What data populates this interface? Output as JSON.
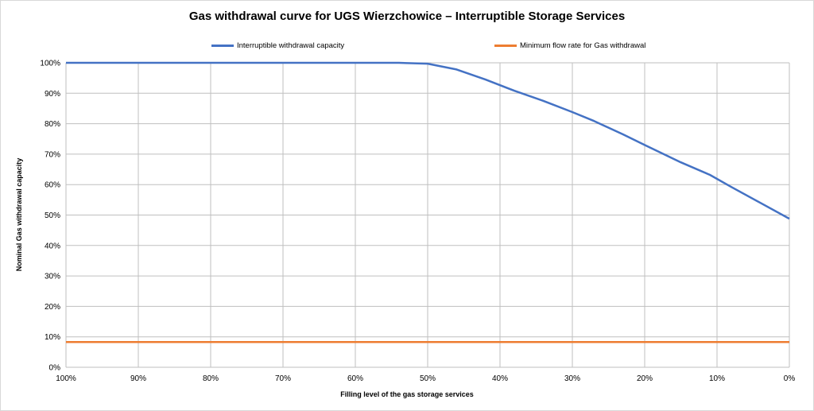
{
  "chart_data": {
    "type": "line",
    "title": "Gas withdrawal curve for UGS Wierzchowice – Interruptible Storage Services",
    "xlabel": "Filling level of the gas storage services",
    "ylabel": "Nominal Gas withdrawal capacity",
    "x_ticks": [
      "100%",
      "90%",
      "80%",
      "70%",
      "60%",
      "50%",
      "40%",
      "30%",
      "20%",
      "10%",
      "0%"
    ],
    "y_ticks": [
      "0%",
      "10%",
      "20%",
      "30%",
      "40%",
      "50%",
      "60%",
      "70%",
      "80%",
      "90%",
      "100%"
    ],
    "xlim": [
      100,
      0
    ],
    "ylim": [
      0,
      100
    ],
    "grid": true,
    "legend_position": "top",
    "series": [
      {
        "name": "Interruptible withdrawal capacity",
        "color": "#4472c4",
        "x": [
          100,
          90,
          80,
          70,
          60,
          54,
          50,
          46,
          42,
          38,
          34,
          30,
          27,
          23,
          20,
          15,
          11,
          8,
          4,
          0
        ],
        "y": [
          100,
          100,
          100,
          100,
          100,
          100,
          99.7,
          97.8,
          94.5,
          90.8,
          87.5,
          83.8,
          80.9,
          76.5,
          73,
          67.3,
          63.2,
          59.2,
          54,
          48.8
        ]
      },
      {
        "name": "Minimum flow rate for Gas withdrawal",
        "color": "#ed7d31",
        "x": [
          100,
          0
        ],
        "y": [
          8.3,
          8.3
        ]
      }
    ]
  }
}
